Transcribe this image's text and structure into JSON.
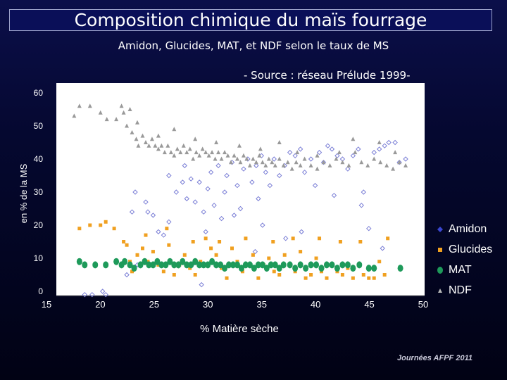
{
  "header": {
    "title": "Composition chimique du maïs fourrage",
    "subtitle": "Amidon, Glucides, MAT, et NDF selon le taux de MS",
    "source": "- Source : réseau Prélude 1999-"
  },
  "footer": "Journées AFPF 2011",
  "colors": {
    "amidon": "#7b7fd6",
    "glucides": "#f0a020",
    "mat": "#1e9a5a",
    "ndf": "#999999",
    "plot_bg": "#ffffff"
  },
  "chart_data": {
    "type": "scatter",
    "xlabel": "% Matière sèche",
    "ylabel": "en % de la MS",
    "xlim": [
      15,
      50
    ],
    "ylim": [
      0,
      60
    ],
    "xticks": [
      "15",
      "20",
      "25",
      "30",
      "35",
      "40",
      "45",
      "50"
    ],
    "yticks": [
      "0",
      "10",
      "20",
      "30",
      "40",
      "50",
      "60"
    ],
    "grid": false,
    "legend": "right",
    "series": [
      {
        "name": "Amidon",
        "marker": "diamond",
        "points": [
          [
            18.5,
            -1
          ],
          [
            19.2,
            -1
          ],
          [
            20.2,
            0
          ],
          [
            20.5,
            -1
          ],
          [
            22.5,
            5
          ],
          [
            23,
            24
          ],
          [
            23.5,
            8
          ],
          [
            24.3,
            27
          ],
          [
            24.5,
            24
          ],
          [
            25,
            23
          ],
          [
            25.5,
            18
          ],
          [
            26.5,
            21
          ],
          [
            26.5,
            35
          ],
          [
            27.2,
            30
          ],
          [
            27.8,
            33
          ],
          [
            28,
            38
          ],
          [
            28.2,
            28
          ],
          [
            28.6,
            34
          ],
          [
            29,
            27
          ],
          [
            29.4,
            33
          ],
          [
            29.8,
            24
          ],
          [
            30.2,
            31
          ],
          [
            30.5,
            36
          ],
          [
            30.8,
            26
          ],
          [
            31.2,
            38
          ],
          [
            31.5,
            22
          ],
          [
            31.8,
            30
          ],
          [
            32,
            35
          ],
          [
            32.5,
            39
          ],
          [
            33,
            32
          ],
          [
            33.3,
            25
          ],
          [
            33.6,
            37
          ],
          [
            34,
            40
          ],
          [
            34.4,
            33
          ],
          [
            34.8,
            38
          ],
          [
            35,
            28
          ],
          [
            35.3,
            41
          ],
          [
            35.7,
            36
          ],
          [
            36.1,
            32
          ],
          [
            36.5,
            40
          ],
          [
            37,
            35
          ],
          [
            37.5,
            38
          ],
          [
            38,
            42
          ],
          [
            38.5,
            41
          ],
          [
            39,
            43
          ],
          [
            39.4,
            36
          ],
          [
            40,
            40
          ],
          [
            40.4,
            32
          ],
          [
            40.8,
            42
          ],
          [
            41.2,
            39
          ],
          [
            41.6,
            44
          ],
          [
            42,
            43
          ],
          [
            42.5,
            41
          ],
          [
            43,
            40
          ],
          [
            43.5,
            37
          ],
          [
            44,
            41
          ],
          [
            44.5,
            43
          ],
          [
            45,
            30
          ],
          [
            45.5,
            19
          ],
          [
            46,
            42
          ],
          [
            46.5,
            43
          ],
          [
            47,
            44
          ],
          [
            47.4,
            45
          ],
          [
            48,
            45
          ],
          [
            48.4,
            39
          ],
          [
            49,
            40
          ],
          [
            28.7,
            8
          ],
          [
            30,
            18
          ],
          [
            32.7,
            23
          ],
          [
            35.4,
            20
          ],
          [
            37.6,
            16
          ],
          [
            39.1,
            18
          ],
          [
            42.2,
            29
          ],
          [
            44.8,
            26
          ],
          [
            46.8,
            13
          ],
          [
            23.3,
            30
          ],
          [
            26,
            17
          ],
          [
            29.6,
            2
          ],
          [
            34.7,
            12
          ]
        ]
      },
      {
        "name": "Glucides",
        "marker": "square",
        "points": [
          [
            18,
            19
          ],
          [
            19,
            20
          ],
          [
            20,
            20
          ],
          [
            20.5,
            21
          ],
          [
            21.3,
            19
          ],
          [
            22.2,
            15
          ],
          [
            22.5,
            14
          ],
          [
            22.8,
            9
          ],
          [
            23,
            6
          ],
          [
            23.5,
            11
          ],
          [
            24,
            13
          ],
          [
            24.5,
            9
          ],
          [
            25,
            12
          ],
          [
            25.5,
            8
          ],
          [
            26,
            6
          ],
          [
            26.5,
            14
          ],
          [
            27,
            5
          ],
          [
            27.5,
            8
          ],
          [
            28,
            11
          ],
          [
            28.5,
            7
          ],
          [
            29,
            5
          ],
          [
            29.5,
            9
          ],
          [
            30,
            16
          ],
          [
            30.5,
            13
          ],
          [
            31,
            11
          ],
          [
            31.5,
            7
          ],
          [
            32,
            4
          ],
          [
            32.5,
            13
          ],
          [
            33,
            9
          ],
          [
            33.5,
            6
          ],
          [
            34,
            8
          ],
          [
            34.5,
            11
          ],
          [
            35,
            4
          ],
          [
            35.5,
            8
          ],
          [
            36,
            10
          ],
          [
            36.5,
            6
          ],
          [
            37,
            5
          ],
          [
            37.5,
            11
          ],
          [
            38,
            8
          ],
          [
            38.5,
            6
          ],
          [
            39,
            12
          ],
          [
            39.5,
            4
          ],
          [
            40,
            5
          ],
          [
            40.5,
            10
          ],
          [
            41,
            6
          ],
          [
            41.5,
            4
          ],
          [
            42,
            8
          ],
          [
            42.5,
            6
          ],
          [
            43,
            5
          ],
          [
            43.5,
            7
          ],
          [
            44,
            4
          ],
          [
            45,
            5
          ],
          [
            45.5,
            4
          ],
          [
            46,
            4
          ],
          [
            46.5,
            9
          ],
          [
            47,
            5
          ],
          [
            24.3,
            17
          ],
          [
            26.3,
            19
          ],
          [
            28.8,
            15
          ],
          [
            31.3,
            15
          ],
          [
            33.8,
            16
          ],
          [
            36.4,
            15
          ],
          [
            38.3,
            16
          ],
          [
            40.8,
            16
          ],
          [
            42.8,
            15
          ],
          [
            44.7,
            15
          ],
          [
            47.3,
            16
          ]
        ]
      },
      {
        "name": "MAT",
        "marker": "ellipse",
        "points": [
          [
            18,
            9
          ],
          [
            18.5,
            8
          ],
          [
            19.5,
            8
          ],
          [
            20.5,
            8
          ],
          [
            21.5,
            9
          ],
          [
            22,
            8
          ],
          [
            22.3,
            9
          ],
          [
            22.8,
            8
          ],
          [
            23.2,
            7
          ],
          [
            23.8,
            8
          ],
          [
            24.2,
            9
          ],
          [
            24.6,
            8
          ],
          [
            25,
            8
          ],
          [
            25.4,
            9
          ],
          [
            25.8,
            8
          ],
          [
            26.2,
            8
          ],
          [
            26.6,
            9
          ],
          [
            27,
            8
          ],
          [
            27.4,
            8
          ],
          [
            27.8,
            9
          ],
          [
            28.2,
            8
          ],
          [
            28.6,
            8
          ],
          [
            29,
            9
          ],
          [
            29.4,
            8
          ],
          [
            29.8,
            8
          ],
          [
            30.2,
            8
          ],
          [
            30.6,
            9
          ],
          [
            31,
            8
          ],
          [
            31.4,
            8
          ],
          [
            31.8,
            7
          ],
          [
            32.2,
            8
          ],
          [
            32.6,
            8
          ],
          [
            33,
            8
          ],
          [
            33.4,
            7
          ],
          [
            33.8,
            8
          ],
          [
            34.2,
            8
          ],
          [
            34.6,
            7
          ],
          [
            35,
            8
          ],
          [
            35.4,
            8
          ],
          [
            35.8,
            7
          ],
          [
            36.2,
            8
          ],
          [
            36.6,
            8
          ],
          [
            37,
            7
          ],
          [
            37.4,
            8
          ],
          [
            38,
            8
          ],
          [
            38.5,
            7
          ],
          [
            39,
            8
          ],
          [
            39.5,
            7
          ],
          [
            40,
            8
          ],
          [
            40.5,
            8
          ],
          [
            41,
            7
          ],
          [
            41.5,
            8
          ],
          [
            42,
            8
          ],
          [
            42.5,
            7
          ],
          [
            43,
            8
          ],
          [
            43.5,
            8
          ],
          [
            44,
            7
          ],
          [
            44.6,
            8
          ],
          [
            45.5,
            7
          ],
          [
            46,
            7
          ],
          [
            48.5,
            7
          ]
        ]
      },
      {
        "name": "NDF",
        "marker": "triangle",
        "points": [
          [
            17.5,
            53
          ],
          [
            18,
            56
          ],
          [
            19,
            56
          ],
          [
            20,
            54
          ],
          [
            20.6,
            52
          ],
          [
            21.5,
            52
          ],
          [
            22,
            56
          ],
          [
            22.2,
            54
          ],
          [
            22.5,
            50
          ],
          [
            22.8,
            55
          ],
          [
            23,
            48
          ],
          [
            23.4,
            46
          ],
          [
            23.6,
            44
          ],
          [
            24,
            47
          ],
          [
            24.3,
            45
          ],
          [
            24.6,
            44
          ],
          [
            24.9,
            46
          ],
          [
            25.2,
            44
          ],
          [
            25.5,
            43
          ],
          [
            25.8,
            44
          ],
          [
            26.1,
            42
          ],
          [
            26.4,
            44
          ],
          [
            26.7,
            42
          ],
          [
            27,
            41
          ],
          [
            27.3,
            43
          ],
          [
            27.6,
            42
          ],
          [
            27.9,
            44
          ],
          [
            28.2,
            42
          ],
          [
            28.5,
            43
          ],
          [
            28.8,
            40
          ],
          [
            29.1,
            42
          ],
          [
            29.4,
            41
          ],
          [
            29.7,
            43
          ],
          [
            30,
            42
          ],
          [
            30.3,
            41
          ],
          [
            30.6,
            42
          ],
          [
            30.9,
            40
          ],
          [
            31.2,
            42
          ],
          [
            31.5,
            40
          ],
          [
            31.8,
            42
          ],
          [
            32.1,
            41
          ],
          [
            32.4,
            39
          ],
          [
            32.7,
            41
          ],
          [
            33,
            40
          ],
          [
            33.3,
            39
          ],
          [
            33.6,
            41
          ],
          [
            33.9,
            40
          ],
          [
            34.2,
            38
          ],
          [
            34.5,
            40
          ],
          [
            34.8,
            39
          ],
          [
            35.1,
            41
          ],
          [
            35.4,
            39
          ],
          [
            35.7,
            38
          ],
          [
            36,
            40
          ],
          [
            36.3,
            39
          ],
          [
            36.6,
            38
          ],
          [
            37,
            40
          ],
          [
            37.4,
            38
          ],
          [
            37.8,
            39
          ],
          [
            38.2,
            37
          ],
          [
            38.6,
            39
          ],
          [
            39,
            38
          ],
          [
            39.4,
            40
          ],
          [
            40,
            38
          ],
          [
            40.6,
            37
          ],
          [
            41.2,
            39
          ],
          [
            41.8,
            38
          ],
          [
            42.4,
            40
          ],
          [
            43,
            39
          ],
          [
            43.6,
            38
          ],
          [
            44.2,
            42
          ],
          [
            44.8,
            39
          ],
          [
            45.4,
            38
          ],
          [
            46,
            40
          ],
          [
            46.6,
            39
          ],
          [
            47.2,
            38
          ],
          [
            47.8,
            37
          ],
          [
            48.4,
            39
          ],
          [
            49,
            38
          ],
          [
            23.5,
            51
          ],
          [
            25.5,
            47
          ],
          [
            27,
            49
          ],
          [
            29,
            46
          ],
          [
            31,
            45
          ],
          [
            33.2,
            44
          ],
          [
            35.2,
            43
          ],
          [
            37,
            45
          ],
          [
            38.7,
            42
          ],
          [
            40.6,
            41
          ],
          [
            42.7,
            42
          ],
          [
            44,
            46
          ],
          [
            46.5,
            45
          ],
          [
            48,
            42
          ]
        ]
      }
    ]
  }
}
